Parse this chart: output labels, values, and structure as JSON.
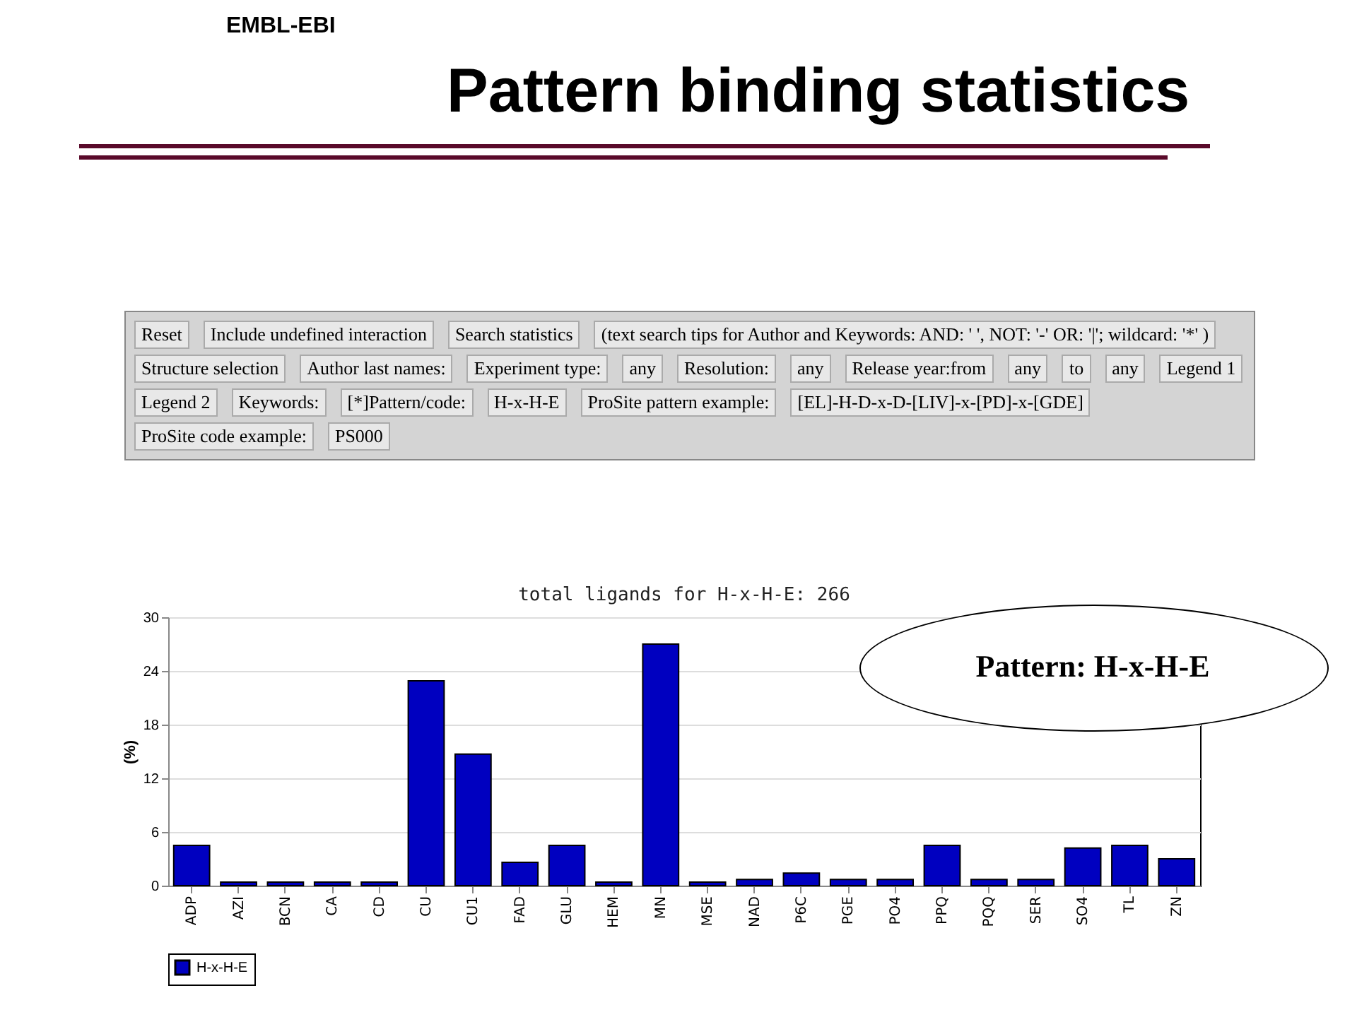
{
  "chart_data": {
    "type": "bar",
    "title": "Pattern binding statistics",
    "subtitle": "total ligands for H-x-H-E: 266",
    "ylabel": "(%)",
    "categories": [
      "ADP",
      "AZI",
      "BCN",
      "CA",
      "CD",
      "CU",
      "CU1",
      "FAD",
      "GLU",
      "HEM",
      "MN",
      "MSE",
      "NAD",
      "P6C",
      "PGE",
      "PO4",
      "PPQ",
      "PQQ",
      "SER",
      "SO4",
      "TL",
      "ZN"
    ],
    "series": [
      {
        "name": "H-x-H-E",
        "color": "#0000c0",
        "values": [
          4.5,
          0.4,
          0.4,
          0.4,
          0.4,
          22.9,
          14.7,
          2.6,
          4.5,
          0.4,
          27.0,
          0.4,
          0.7,
          1.4,
          0.7,
          0.7,
          4.5,
          0.7,
          0.7,
          4.2,
          4.5,
          3.0
        ]
      }
    ],
    "ylim": [
      0,
      30
    ],
    "yticks": [
      0,
      6,
      12,
      18,
      24,
      30
    ],
    "grid": "y",
    "legend": "bottom",
    "annotations": [
      "EMBL-EBI",
      "Pattern: H-x-H-E",
      "Reset",
      "Include undefined interaction",
      "Search statistics",
      "(text search tips for Author and Keywords: AND: ' ', NOT: '-' OR: '|'; wildcard: '*' )",
      "Structure selection",
      "Author last names:",
      "Experiment type:",
      "any",
      "Resolution:",
      "any",
      "Release year:from",
      "any",
      "to",
      "any",
      "Legend 1",
      "Legend 2",
      "Keywords:",
      "[*]Pattern/code:",
      "H-x-H-E",
      "ProSite pattern example:",
      "[EL]-H-D-x-D-[LIV]-x-[PD]-x-[GDE]",
      "ProSite code example:",
      "PS000"
    ]
  }
}
